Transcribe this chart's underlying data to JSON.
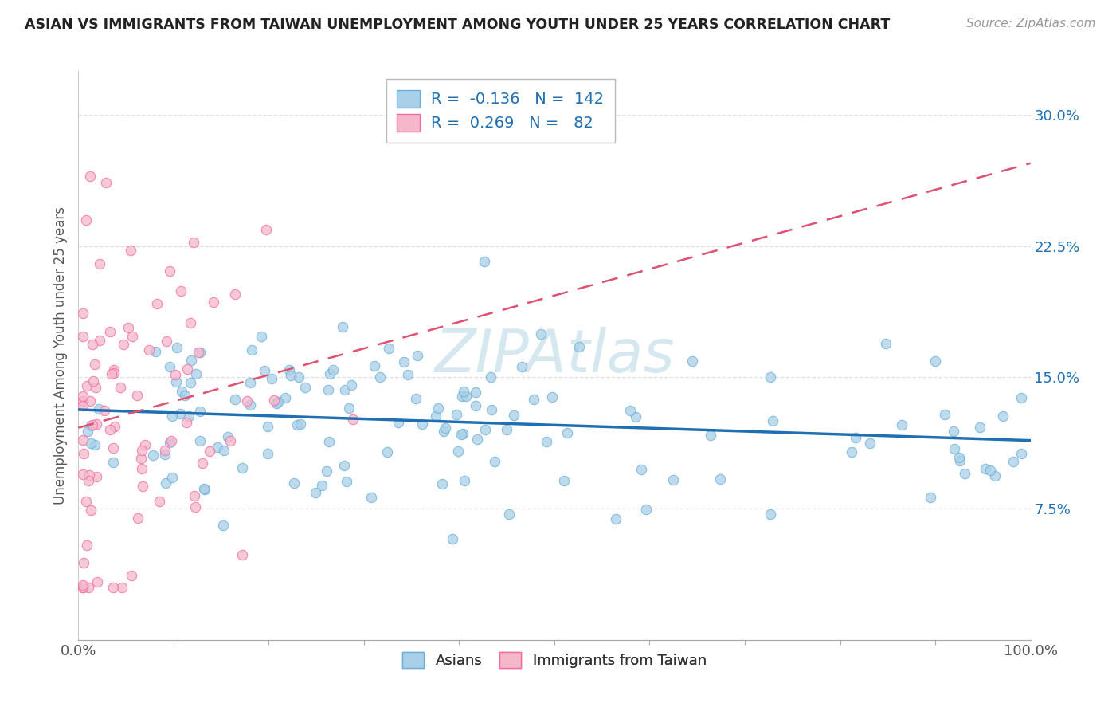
{
  "title": "ASIAN VS IMMIGRANTS FROM TAIWAN UNEMPLOYMENT AMONG YOUTH UNDER 25 YEARS CORRELATION CHART",
  "source": "Source: ZipAtlas.com",
  "ylabel": "Unemployment Among Youth under 25 years",
  "ytick_values": [
    0.075,
    0.15,
    0.225,
    0.3
  ],
  "ytick_labels": [
    "7.5%",
    "15.0%",
    "22.5%",
    "30.0%"
  ],
  "xlim": [
    0.0,
    1.0
  ],
  "ylim": [
    0.0,
    0.325
  ],
  "legend_asian_r": "-0.136",
  "legend_asian_n": "142",
  "legend_taiwan_r": "0.269",
  "legend_taiwan_n": "82",
  "asian_fill_color": "#a8d0e8",
  "asian_edge_color": "#6baed6",
  "taiwan_fill_color": "#f4b8ca",
  "taiwan_edge_color": "#f768a1",
  "asian_line_color": "#1f6fb2",
  "taiwan_line_color": "#e05070",
  "legend_value_color": "#1f6fb2",
  "ylabel_color": "#555555",
  "ytick_color": "#1f6fb2",
  "xtick_color": "#555555",
  "grid_color": "#e0e0e0",
  "title_color": "#222222",
  "source_color": "#999999",
  "watermark_color": "#d5e8f0"
}
